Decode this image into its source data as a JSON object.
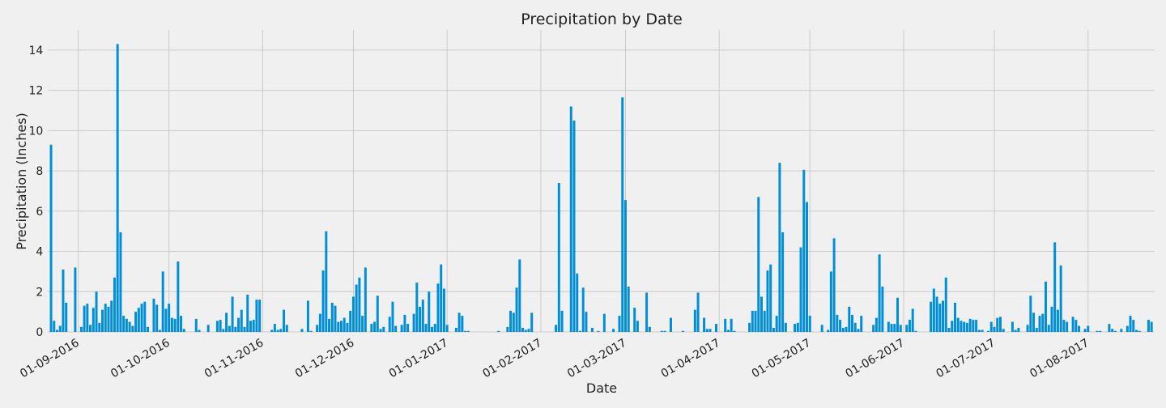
{
  "chart_data": {
    "type": "bar",
    "title": "Precipitation by Date",
    "xlabel": "Date",
    "ylabel": "Precipitation (Inches)",
    "color": "#008fd5",
    "grid": true,
    "x": [
      "2016-08-23",
      "2016-08-24",
      "2016-08-25",
      "2016-08-26",
      "2016-08-27",
      "2016-08-28",
      "2016-08-31",
      "2016-09-02",
      "2016-09-03",
      "2016-09-04",
      "2016-09-05",
      "2016-09-06",
      "2016-09-07",
      "2016-09-08",
      "2016-09-09",
      "2016-09-10",
      "2016-09-11",
      "2016-09-12",
      "2016-09-13",
      "2016-09-14",
      "2016-09-15",
      "2016-09-16",
      "2016-09-17",
      "2016-09-18",
      "2016-09-19",
      "2016-09-20",
      "2016-09-21",
      "2016-09-22",
      "2016-09-23",
      "2016-09-24",
      "2016-09-26",
      "2016-09-27",
      "2016-09-28",
      "2016-09-29",
      "2016-09-30",
      "2016-10-01",
      "2016-10-02",
      "2016-10-03",
      "2016-10-04",
      "2016-10-05",
      "2016-10-06",
      "2016-10-10",
      "2016-10-11",
      "2016-10-14",
      "2016-10-17",
      "2016-10-18",
      "2016-10-19",
      "2016-10-20",
      "2016-10-21",
      "2016-10-22",
      "2016-10-23",
      "2016-10-24",
      "2016-10-25",
      "2016-10-26",
      "2016-10-27",
      "2016-10-28",
      "2016-10-29",
      "2016-10-30",
      "2016-10-31",
      "2016-11-04",
      "2016-11-05",
      "2016-11-06",
      "2016-11-07",
      "2016-11-08",
      "2016-11-09",
      "2016-11-14",
      "2016-11-16",
      "2016-11-17",
      "2016-11-19",
      "2016-11-20",
      "2016-11-21",
      "2016-11-22",
      "2016-11-23",
      "2016-11-24",
      "2016-11-25",
      "2016-11-26",
      "2016-11-27",
      "2016-11-28",
      "2016-11-29",
      "2016-11-30",
      "2016-12-01",
      "2016-12-02",
      "2016-12-03",
      "2016-12-04",
      "2016-12-05",
      "2016-12-07",
      "2016-12-08",
      "2016-12-09",
      "2016-12-10",
      "2016-12-11",
      "2016-12-13",
      "2016-12-14",
      "2016-12-15",
      "2016-12-17",
      "2016-12-18",
      "2016-12-19",
      "2016-12-21",
      "2016-12-22",
      "2016-12-23",
      "2016-12-24",
      "2016-12-25",
      "2016-12-26",
      "2016-12-27",
      "2016-12-28",
      "2016-12-29",
      "2016-12-30",
      "2016-12-31",
      "2017-01-01",
      "2017-01-04",
      "2017-01-05",
      "2017-01-06",
      "2017-01-07",
      "2017-01-08",
      "2017-01-18",
      "2017-01-21",
      "2017-01-22",
      "2017-01-23",
      "2017-01-24",
      "2017-01-25",
      "2017-01-26",
      "2017-01-27",
      "2017-01-28",
      "2017-01-29",
      "2017-02-06",
      "2017-02-07",
      "2017-02-08",
      "2017-02-11",
      "2017-02-12",
      "2017-02-13",
      "2017-02-14",
      "2017-02-15",
      "2017-02-16",
      "2017-02-18",
      "2017-02-20",
      "2017-02-22",
      "2017-02-25",
      "2017-02-27",
      "2017-02-28",
      "2017-03-01",
      "2017-03-02",
      "2017-03-04",
      "2017-03-05",
      "2017-03-08",
      "2017-03-09",
      "2017-03-13",
      "2017-03-14",
      "2017-03-16",
      "2017-03-20",
      "2017-03-24",
      "2017-03-25",
      "2017-03-27",
      "2017-03-28",
      "2017-03-29",
      "2017-03-31",
      "2017-04-03",
      "2017-04-04",
      "2017-04-05",
      "2017-04-06",
      "2017-04-11",
      "2017-04-12",
      "2017-04-13",
      "2017-04-14",
      "2017-04-15",
      "2017-04-16",
      "2017-04-17",
      "2017-04-18",
      "2017-04-19",
      "2017-04-20",
      "2017-04-21",
      "2017-04-22",
      "2017-04-23",
      "2017-04-26",
      "2017-04-27",
      "2017-04-28",
      "2017-04-29",
      "2017-04-30",
      "2017-05-01",
      "2017-05-05",
      "2017-05-07",
      "2017-05-08",
      "2017-05-09",
      "2017-05-10",
      "2017-05-11",
      "2017-05-12",
      "2017-05-13",
      "2017-05-14",
      "2017-05-15",
      "2017-05-16",
      "2017-05-17",
      "2017-05-18",
      "2017-05-22",
      "2017-05-23",
      "2017-05-24",
      "2017-05-25",
      "2017-05-27",
      "2017-05-28",
      "2017-05-29",
      "2017-05-30",
      "2017-05-31",
      "2017-06-02",
      "2017-06-03",
      "2017-06-04",
      "2017-06-05",
      "2017-06-10",
      "2017-06-11",
      "2017-06-12",
      "2017-06-13",
      "2017-06-14",
      "2017-06-15",
      "2017-06-16",
      "2017-06-17",
      "2017-06-18",
      "2017-06-19",
      "2017-06-20",
      "2017-06-21",
      "2017-06-22",
      "2017-06-23",
      "2017-06-24",
      "2017-06-25",
      "2017-06-26",
      "2017-06-27",
      "2017-06-29",
      "2017-06-30",
      "2017-07-01",
      "2017-07-02",
      "2017-07-03",
      "2017-07-04",
      "2017-07-07",
      "2017-07-08",
      "2017-07-09",
      "2017-07-12",
      "2017-07-13",
      "2017-07-14",
      "2017-07-15",
      "2017-07-16",
      "2017-07-17",
      "2017-07-18",
      "2017-07-19",
      "2017-07-20",
      "2017-07-21",
      "2017-07-22",
      "2017-07-23",
      "2017-07-24",
      "2017-07-25",
      "2017-07-27",
      "2017-07-28",
      "2017-07-29",
      "2017-07-31",
      "2017-08-01",
      "2017-08-04",
      "2017-08-05",
      "2017-08-08",
      "2017-08-09",
      "2017-08-10",
      "2017-08-12",
      "2017-08-14",
      "2017-08-15",
      "2017-08-16",
      "2017-08-17",
      "2017-08-18",
      "2017-08-21",
      "2017-08-22"
    ],
    "values": [
      9.3,
      0.55,
      0.1,
      0.3,
      3.1,
      1.45,
      3.2,
      0.25,
      1.3,
      1.4,
      0.35,
      1.2,
      2.0,
      0.45,
      1.1,
      1.4,
      1.25,
      1.55,
      2.7,
      14.3,
      4.95,
      0.8,
      0.65,
      0.5,
      0.3,
      1.0,
      1.2,
      1.4,
      1.5,
      0.25,
      1.65,
      1.35,
      0.1,
      3.0,
      1.15,
      1.4,
      0.7,
      0.65,
      3.5,
      0.8,
      0.15,
      0.65,
      0.1,
      0.35,
      0.55,
      0.6,
      0.15,
      0.95,
      0.3,
      1.75,
      0.25,
      0.7,
      1.1,
      0.25,
      1.85,
      0.55,
      0.6,
      1.6,
      1.6,
      0.1,
      0.4,
      0.1,
      0.15,
      1.1,
      0.35,
      0.15,
      1.55,
      0.05,
      0.35,
      0.9,
      3.05,
      5.0,
      0.65,
      1.45,
      1.3,
      0.5,
      0.55,
      0.7,
      0.45,
      1.05,
      1.75,
      2.35,
      2.7,
      0.8,
      3.2,
      0.4,
      0.5,
      1.8,
      0.15,
      0.25,
      0.75,
      1.5,
      0.3,
      0.35,
      0.85,
      0.4,
      0.9,
      2.45,
      1.25,
      1.6,
      0.4,
      2.0,
      0.25,
      0.4,
      2.4,
      3.35,
      2.15,
      0.35,
      0.2,
      0.95,
      0.8,
      0.05,
      0.05,
      0.05,
      0.25,
      1.05,
      0.95,
      2.2,
      3.6,
      0.2,
      0.1,
      0.15,
      0.95,
      0.35,
      7.4,
      1.05,
      11.2,
      10.5,
      2.9,
      0.05,
      2.2,
      1.0,
      0.2,
      0.05,
      0.9,
      0.15,
      0.8,
      11.65,
      6.55,
      2.25,
      1.2,
      0.55,
      1.95,
      0.25,
      0.05,
      0.05,
      0.7,
      0.05,
      1.1,
      1.95,
      0.7,
      0.15,
      0.15,
      0.4,
      0.65,
      0.1,
      0.65,
      0.05,
      0.45,
      1.05,
      1.05,
      6.7,
      1.75,
      1.05,
      3.05,
      3.35,
      0.2,
      0.8,
      8.4,
      4.95,
      0.45,
      0.4,
      0.45,
      4.2,
      8.05,
      6.45,
      0.8,
      0.35,
      0.1,
      3.0,
      4.65,
      0.85,
      0.6,
      0.2,
      0.25,
      1.25,
      0.85,
      0.45,
      0.15,
      0.8,
      0.35,
      0.7,
      3.85,
      2.25,
      0.5,
      0.4,
      0.4,
      1.7,
      0.35,
      0.35,
      0.6,
      1.15,
      0.05,
      1.5,
      2.15,
      1.75,
      1.4,
      1.55,
      2.7,
      0.2,
      0.55,
      1.45,
      0.7,
      0.55,
      0.5,
      0.45,
      0.65,
      0.6,
      0.6,
      0.1,
      0.1,
      0.05,
      0.5,
      0.25,
      0.7,
      0.75,
      0.15,
      0.5,
      0.1,
      0.2,
      0.35,
      1.8,
      0.95,
      0.2,
      0.8,
      0.9,
      2.5,
      0.35,
      1.25,
      4.45,
      1.1,
      3.3,
      0.6,
      0.5,
      0.75,
      0.6,
      0.3,
      0.15,
      0.3,
      0.05,
      0.05,
      0.4,
      0.15,
      0.05,
      0.15,
      0.3,
      0.8,
      0.6,
      0.1,
      0.05,
      0.6,
      0.5
    ],
    "xlim": [
      "2016-08-22",
      "2017-08-23"
    ],
    "xticks": [
      {
        "value": "2016-09-01",
        "label": "01-09-2016"
      },
      {
        "value": "2016-10-01",
        "label": "01-10-2016"
      },
      {
        "value": "2016-11-01",
        "label": "01-11-2016"
      },
      {
        "value": "2016-12-01",
        "label": "01-12-2016"
      },
      {
        "value": "2017-01-01",
        "label": "01-01-2017"
      },
      {
        "value": "2017-02-01",
        "label": "01-02-2017"
      },
      {
        "value": "2017-03-01",
        "label": "01-03-2017"
      },
      {
        "value": "2017-04-01",
        "label": "01-04-2017"
      },
      {
        "value": "2017-05-01",
        "label": "01-05-2017"
      },
      {
        "value": "2017-06-01",
        "label": "01-06-2017"
      },
      {
        "value": "2017-07-01",
        "label": "01-07-2017"
      },
      {
        "value": "2017-08-01",
        "label": "01-08-2017"
      }
    ],
    "ylim": [
      0,
      15
    ],
    "yticks": [
      0,
      2,
      4,
      6,
      8,
      10,
      12,
      14
    ]
  }
}
